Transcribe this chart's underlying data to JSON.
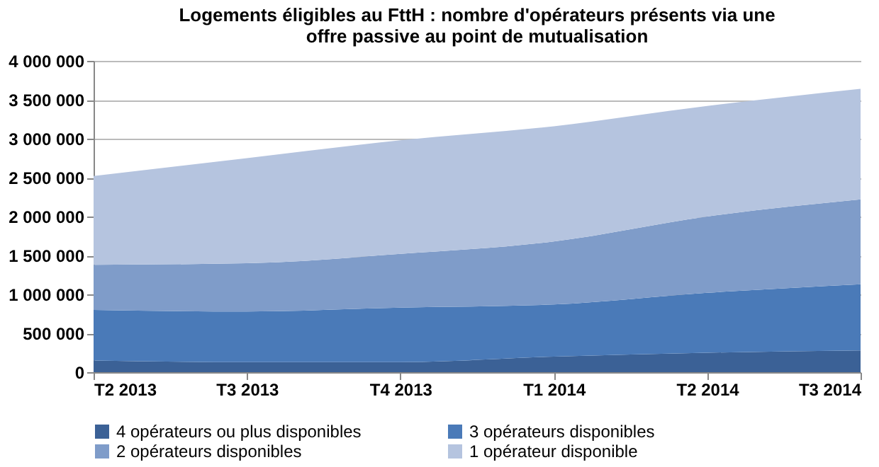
{
  "chart_data": {
    "type": "area",
    "title": [
      "Logements éligibles au FttH : nombre d'opérateurs présents via une",
      "offre passive au point de mutualisation"
    ],
    "categories": [
      "T2 2013",
      "T3 2013",
      "T4 2013",
      "T1 2014",
      "T2 2014",
      "T3 2014"
    ],
    "stacked": true,
    "series": [
      {
        "name": "4 opérateurs ou plus disponibles",
        "color": "#3b6196",
        "values": [
          150000,
          130000,
          130000,
          200000,
          250000,
          280000
        ]
      },
      {
        "name": "3 opérateurs disponibles",
        "color": "#4a7ab8",
        "values": [
          650000,
          650000,
          700000,
          670000,
          770000,
          850000
        ]
      },
      {
        "name": "2 opérateurs disponibles",
        "color": "#7f9cc9",
        "values": [
          580000,
          620000,
          690000,
          810000,
          980000,
          1090000
        ]
      },
      {
        "name": "1 opérateur disponible",
        "color": "#b5c4df",
        "values": [
          1140000,
          1350000,
          1460000,
          1480000,
          1420000,
          1420000
        ]
      }
    ],
    "ylim": [
      0,
      4000000
    ],
    "yticks": [
      {
        "value": 0,
        "label": "0"
      },
      {
        "value": 500000,
        "label": "500 000"
      },
      {
        "value": 1000000,
        "label": "1 000 000"
      },
      {
        "value": 1500000,
        "label": "1 500 000"
      },
      {
        "value": 2000000,
        "label": "2 000 000"
      },
      {
        "value": 2500000,
        "label": "2 500 000"
      },
      {
        "value": 3000000,
        "label": "3 000 000"
      },
      {
        "value": 3500000,
        "label": "3 500 000"
      },
      {
        "value": 4000000,
        "label": "4 000 000"
      }
    ],
    "grid": "y",
    "legend": "bottom"
  }
}
